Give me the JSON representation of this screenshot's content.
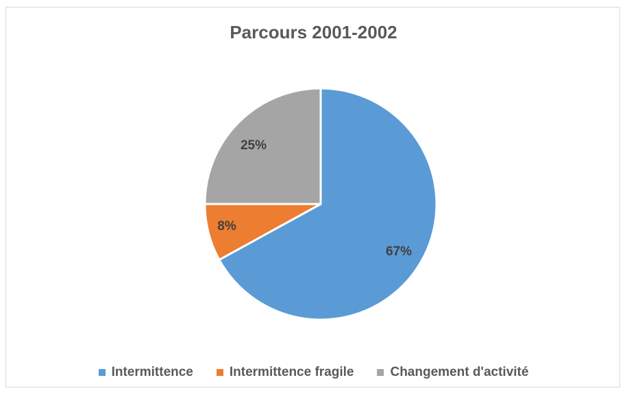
{
  "chart_data": {
    "type": "pie",
    "title": "Parcours 2001-2002",
    "slices": [
      {
        "name": "Intermittence",
        "value": 67,
        "label": "67%",
        "color": "#5b9bd5"
      },
      {
        "name": "Intermittence fragile",
        "value": 8,
        "label": "8%",
        "color": "#ed7d31"
      },
      {
        "name": "Changement d'activité",
        "value": 25,
        "label": "25%",
        "color": "#a5a5a5"
      }
    ],
    "legend_position": "bottom"
  }
}
